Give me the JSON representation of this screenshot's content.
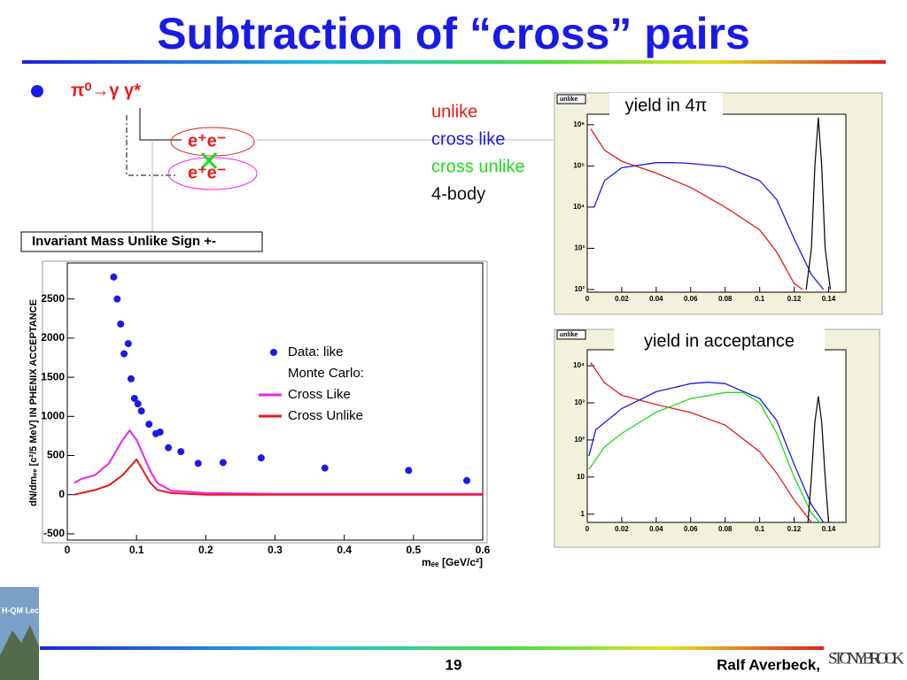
{
  "slide": {
    "title": "Subtraction of “cross” pairs",
    "bullet": "π⁰→γ γ*",
    "pair_top": "e⁺e⁻",
    "pair_bottom": "e⁺e⁻",
    "logo_text": "H-QM Lecture Week",
    "page_number": "19",
    "author": "Ralf Averbeck,",
    "university": "STONY BROOK"
  },
  "chart_data": [
    {
      "type": "line",
      "title": "Invariant Mass Unlike Sign +-",
      "x_label": "mₑₑ [GeV/c²]",
      "y_label": "dN/dmₑₑ [c²/5 MeV] IN PHENIX ACCEPTANCE",
      "xlim": [
        0,
        0.6
      ],
      "ylim": [
        -580,
        2960
      ],
      "xticks": [
        0,
        0.1,
        0.2,
        0.3,
        0.4,
        0.5,
        0.6
      ],
      "yticks": [
        -500,
        0,
        500,
        1000,
        1500,
        2000,
        2500
      ],
      "legend_heading": "Monte Carlo:",
      "series": [
        {
          "name": "Data: like",
          "color": "#1a1ae6",
          "marker": "dot",
          "x": [
            0.067,
            0.072,
            0.077,
            0.082,
            0.088,
            0.092,
            0.097,
            0.102,
            0.107,
            0.118,
            0.128,
            0.134,
            0.146,
            0.164,
            0.189,
            0.225,
            0.28,
            0.372,
            0.493,
            0.577
          ],
          "values": [
            2780,
            2500,
            2180,
            1800,
            1930,
            1480,
            1230,
            1160,
            1070,
            900,
            780,
            800,
            600,
            550,
            400,
            410,
            470,
            340,
            310,
            180
          ]
        },
        {
          "name": "Cross Like",
          "color": "#ee22ee",
          "x": [
            0.01,
            0.02,
            0.04,
            0.06,
            0.07,
            0.08,
            0.09,
            0.1,
            0.11,
            0.12,
            0.13,
            0.15,
            0.2,
            0.3,
            0.4,
            0.5,
            0.6
          ],
          "values": [
            150,
            200,
            250,
            400,
            550,
            700,
            820,
            700,
            500,
            300,
            150,
            50,
            20,
            10,
            10,
            10,
            10
          ]
        },
        {
          "name": "Cross Unlike",
          "color": "#e61a1a",
          "x": [
            0.01,
            0.02,
            0.04,
            0.06,
            0.08,
            0.09,
            0.1,
            0.11,
            0.12,
            0.13,
            0.15,
            0.2,
            0.3,
            0.4,
            0.5,
            0.6
          ],
          "values": [
            0,
            20,
            60,
            120,
            250,
            350,
            450,
            300,
            150,
            60,
            20,
            0,
            0,
            0,
            0,
            0
          ]
        }
      ]
    },
    {
      "type": "line",
      "title": "yield in 4π",
      "tag": "unlike",
      "log_y": true,
      "xlim": [
        0,
        0.15
      ],
      "ylim": [
        86,
        1800000
      ],
      "xticks": [
        0,
        0.02,
        0.04,
        0.06,
        0.08,
        0.1,
        0.12,
        0.14
      ],
      "yticks": [
        {
          "value": 100,
          "label": "10²"
        },
        {
          "value": 1000,
          "label": "10³"
        },
        {
          "value": 10000,
          "label": "10⁴"
        },
        {
          "value": 100000,
          "label": "10⁵"
        },
        {
          "value": 1000000,
          "label": "10⁶"
        }
      ],
      "series": [
        {
          "color": "#e61a1a",
          "x": [
            0.002,
            0.01,
            0.02,
            0.04,
            0.06,
            0.08,
            0.1,
            0.11,
            0.12,
            0.125
          ],
          "values": [
            800000,
            240000,
            130000,
            67000,
            30000,
            10000,
            2800,
            800,
            140,
            100
          ]
        },
        {
          "color": "#1a1ae6",
          "x": [
            0.004,
            0.01,
            0.02,
            0.04,
            0.05,
            0.06,
            0.08,
            0.1,
            0.11,
            0.12,
            0.13,
            0.137
          ],
          "values": [
            10000,
            44000,
            90000,
            120000,
            120000,
            115000,
            95000,
            44000,
            15000,
            1700,
            230,
            100
          ]
        },
        {
          "color": "#111111",
          "x": [
            0.127,
            0.13,
            0.132,
            0.134,
            0.136,
            0.138,
            0.141
          ],
          "values": [
            100,
            1000,
            100000,
            1500000,
            100000,
            1000,
            100
          ]
        }
      ]
    },
    {
      "type": "line",
      "title": "yield in acceptance",
      "tag": "unlike",
      "log_y": true,
      "xlim": [
        0,
        0.15
      ],
      "ylim": [
        0.6,
        27000
      ],
      "xticks": [
        0,
        0.02,
        0.04,
        0.06,
        0.08,
        0.1,
        0.12,
        0.14
      ],
      "yticks": [
        1,
        10,
        {
          "value": 100,
          "label": "10²"
        },
        {
          "value": 1000,
          "label": "10³"
        },
        {
          "value": 10000,
          "label": "10⁴"
        }
      ],
      "series": [
        {
          "name": "unlike",
          "color": "#e61a1a",
          "x": [
            0.002,
            0.01,
            0.02,
            0.04,
            0.06,
            0.08,
            0.1,
            0.11,
            0.12,
            0.13
          ],
          "values": [
            12000,
            3500,
            1600,
            900,
            550,
            250,
            48,
            12.5,
            2.4,
            0.6
          ]
        },
        {
          "name": "cross like",
          "color": "#1a1ae6",
          "x": [
            0.001,
            0.005,
            0.02,
            0.04,
            0.06,
            0.07,
            0.08,
            0.1,
            0.11,
            0.12,
            0.13,
            0.137
          ],
          "values": [
            37,
            190,
            700,
            2000,
            3300,
            3600,
            3300,
            1300,
            330,
            22,
            1.8,
            0.6
          ]
        },
        {
          "name": "cross unlike",
          "color": "#1adc1a",
          "x": [
            0.001,
            0.01,
            0.02,
            0.04,
            0.06,
            0.08,
            0.09,
            0.1,
            0.11,
            0.12,
            0.13,
            0.135
          ],
          "values": [
            16,
            65,
            150,
            560,
            1300,
            1900,
            1900,
            1000,
            150,
            10,
            1.06,
            0.6
          ]
        },
        {
          "name": "4-body",
          "color": "#111111",
          "x": [
            0.128,
            0.13,
            0.132,
            0.134,
            0.136,
            0.138,
            0.14
          ],
          "values": [
            0.6,
            10,
            300,
            1500,
            300,
            10,
            0.6
          ]
        }
      ]
    }
  ]
}
